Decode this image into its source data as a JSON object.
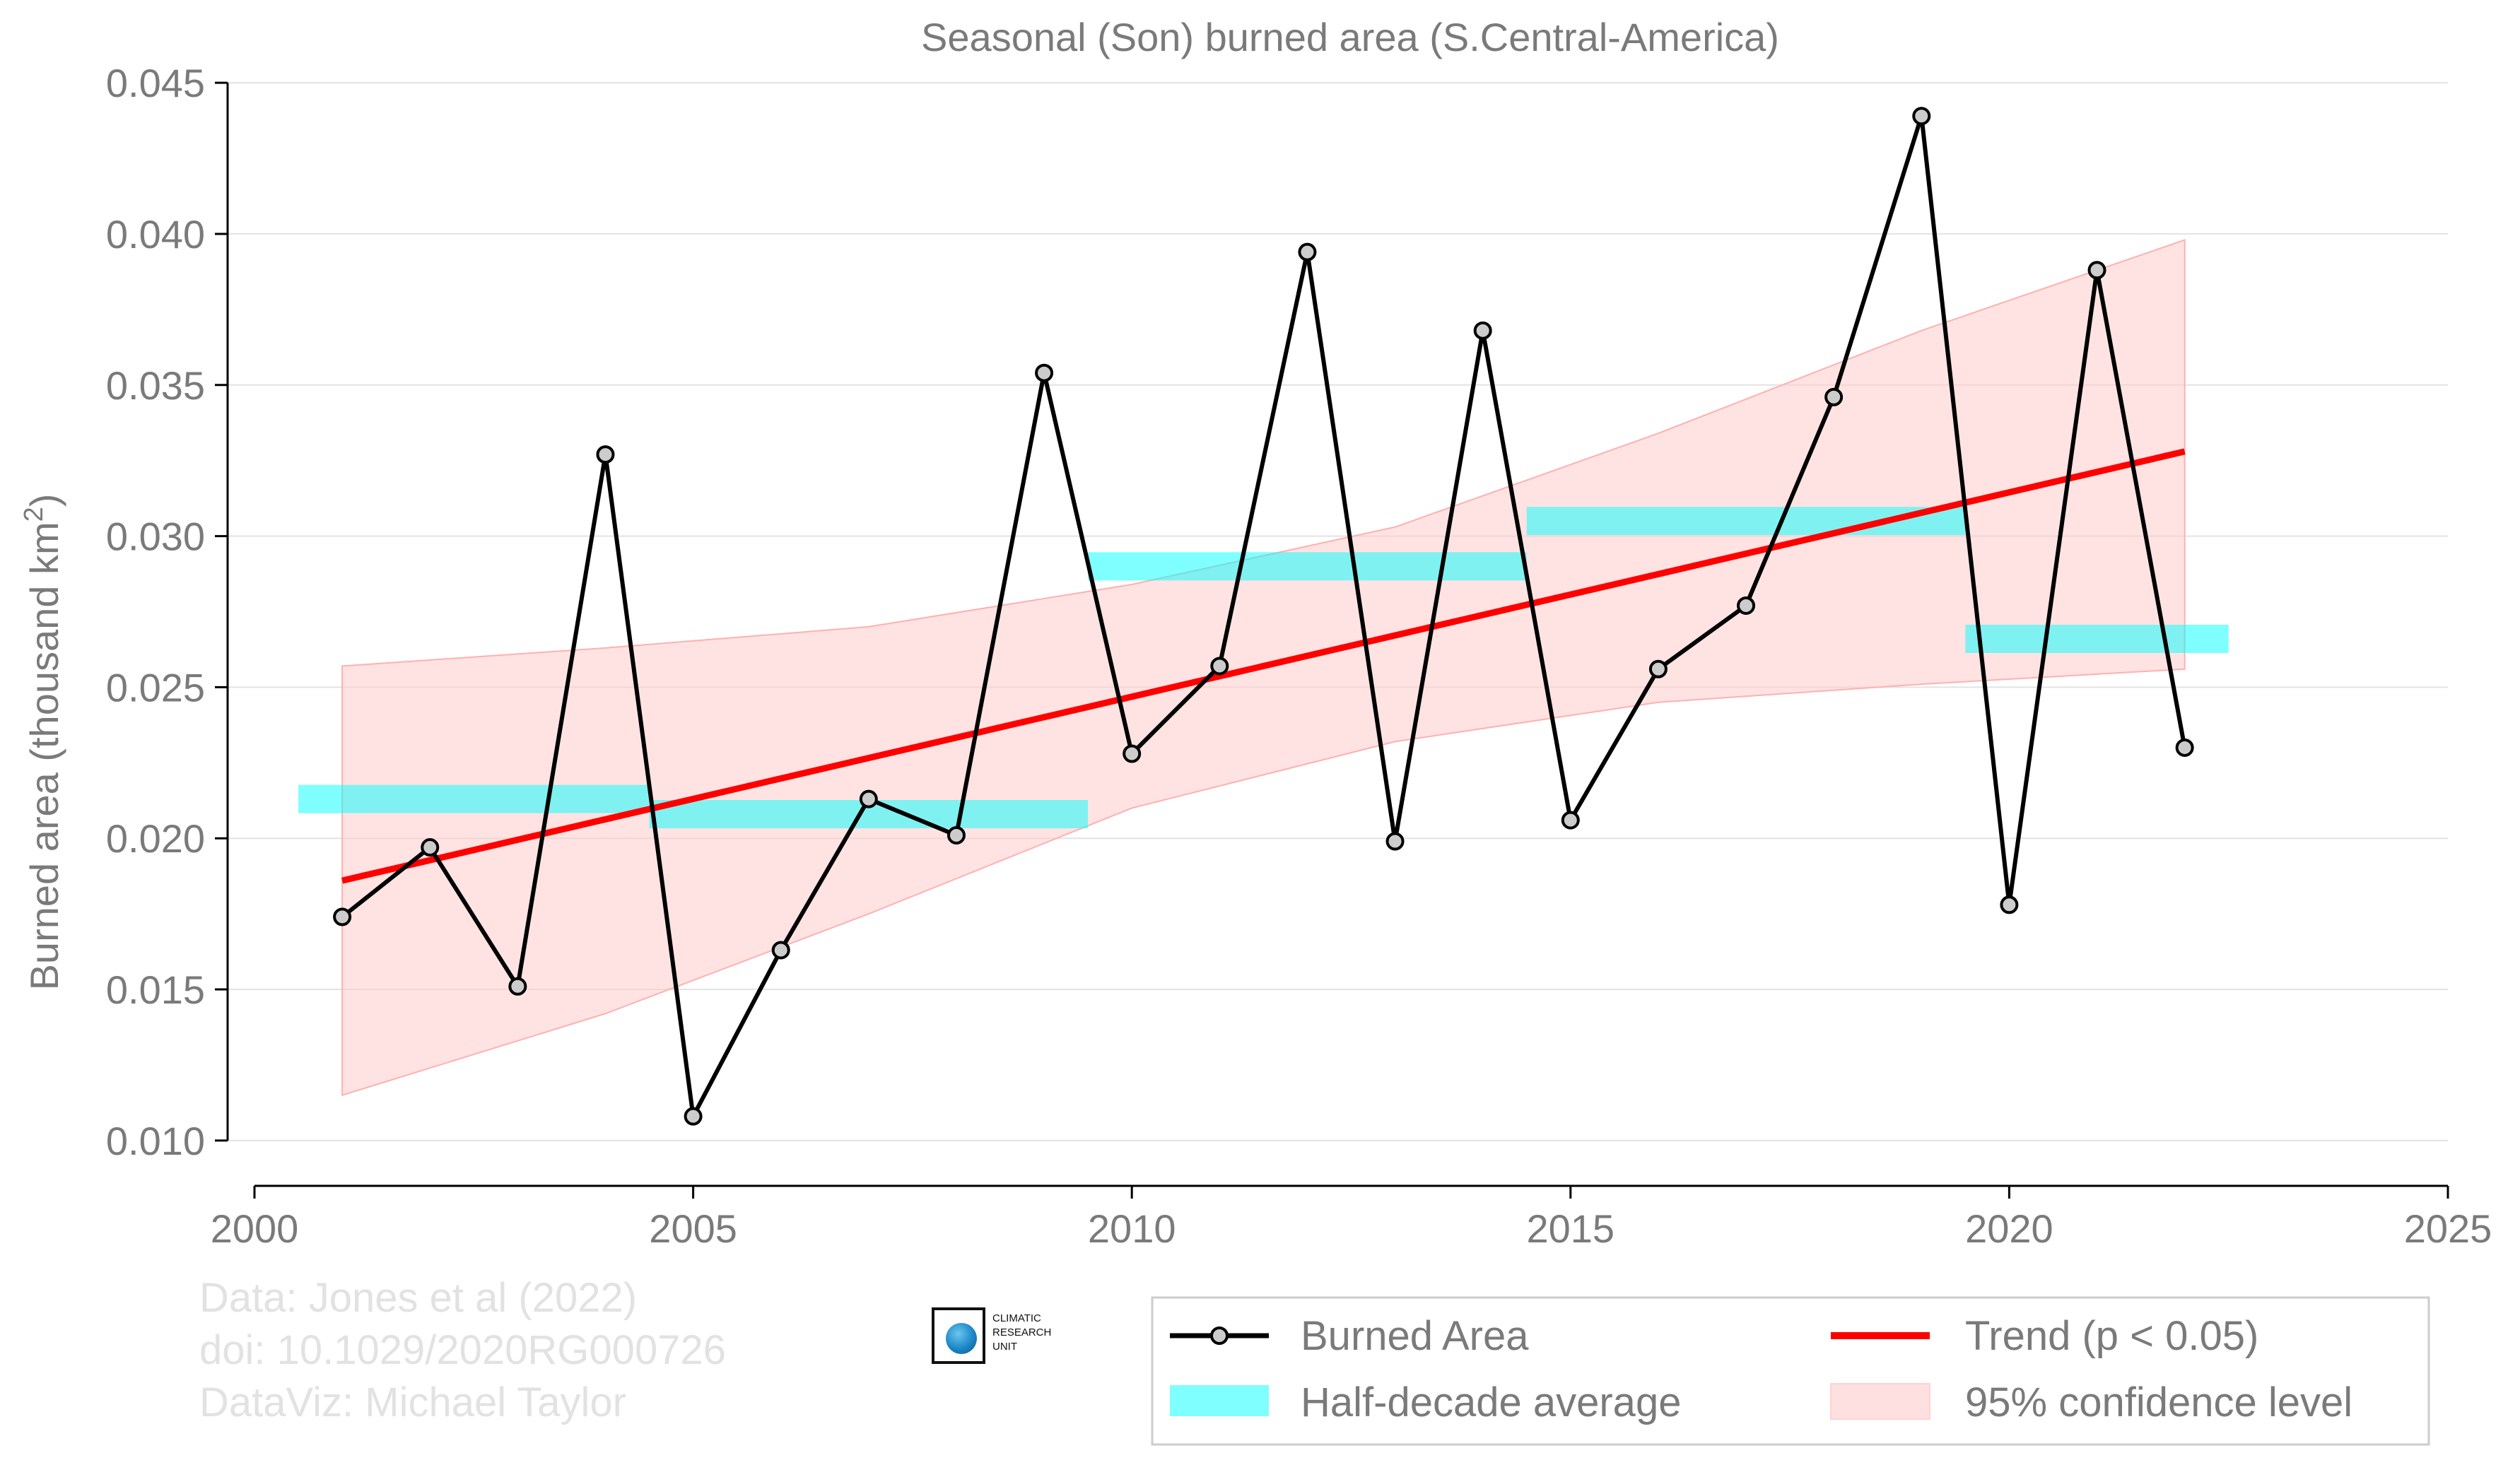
{
  "chart_data": {
    "type": "line",
    "title": "Seasonal (Son) burned area (S.Central-America)",
    "ylabel_main": "Burned area (thousand km",
    "ylabel_sup": "2",
    "ylabel_close": ")",
    "xlim": [
      2000,
      2025
    ],
    "ylim": [
      0.0085,
      0.0447
    ],
    "xticks": [
      2000,
      2005,
      2010,
      2015,
      2020,
      2025
    ],
    "yticks": [
      0.01,
      0.015,
      0.02,
      0.025,
      0.03,
      0.035,
      0.04,
      0.045
    ],
    "ytick_labels": [
      "0.010",
      "0.015",
      "0.020",
      "0.025",
      "0.030",
      "0.035",
      "0.040",
      "0.045"
    ],
    "grid": "horizontal",
    "series": [
      {
        "name": "Burned Area",
        "color": "#000000",
        "x": [
          2001,
          2002,
          2003,
          2004,
          2005,
          2006,
          2007,
          2008,
          2009,
          2010,
          2011,
          2012,
          2013,
          2014,
          2015,
          2016,
          2017,
          2018,
          2019,
          2020,
          2021,
          2022
        ],
        "y": [
          0.0174,
          0.0197,
          0.0151,
          0.0327,
          0.0108,
          0.0163,
          0.0213,
          0.0201,
          0.0354,
          0.0228,
          0.0257,
          0.0394,
          0.0199,
          0.0368,
          0.0206,
          0.0256,
          0.0277,
          0.0346,
          0.0439,
          0.0178,
          0.0388,
          0.023
        ]
      },
      {
        "name": "Trend (p < 0.05)",
        "color": "#ff0000",
        "x": [
          2001,
          2022
        ],
        "y": [
          0.0186,
          0.0328
        ]
      }
    ],
    "half_decade_average": {
      "name": "Half-decade average",
      "color": "#00ffff",
      "segments": [
        {
          "x0": 2000.5,
          "x1": 2004.5,
          "y": 0.0213
        },
        {
          "x0": 2004.5,
          "x1": 2009.5,
          "y": 0.0208
        },
        {
          "x0": 2009.5,
          "x1": 2014.5,
          "y": 0.029
        },
        {
          "x0": 2014.5,
          "x1": 2019.5,
          "y": 0.0305
        },
        {
          "x0": 2019.5,
          "x1": 2022.5,
          "y": 0.0266
        }
      ]
    },
    "confidence_band": {
      "name": "95% confidence level",
      "color": "#ffcccc",
      "x": [
        2001,
        2004,
        2007,
        2010,
        2013,
        2016,
        2019,
        2022
      ],
      "lower": [
        0.0115,
        0.0142,
        0.0175,
        0.021,
        0.0232,
        0.0245,
        0.0251,
        0.0256
      ],
      "upper": [
        0.0257,
        0.0263,
        0.027,
        0.0284,
        0.0303,
        0.0334,
        0.0368,
        0.0398
      ]
    },
    "legend": {
      "placement": "bottom-right",
      "items": [
        "Burned Area",
        "Trend (p < 0.05)",
        "Half-decade average",
        "95% confidence level"
      ]
    }
  },
  "credits": {
    "line1": "Data: Jones et al (2022)",
    "line2": "doi: 10.1029/2020RG000726",
    "line3": "DataViz: Michael Taylor"
  },
  "logo": {
    "line1": "CLIMATIC",
    "line2": "RESEARCH",
    "line3": "UNIT"
  }
}
